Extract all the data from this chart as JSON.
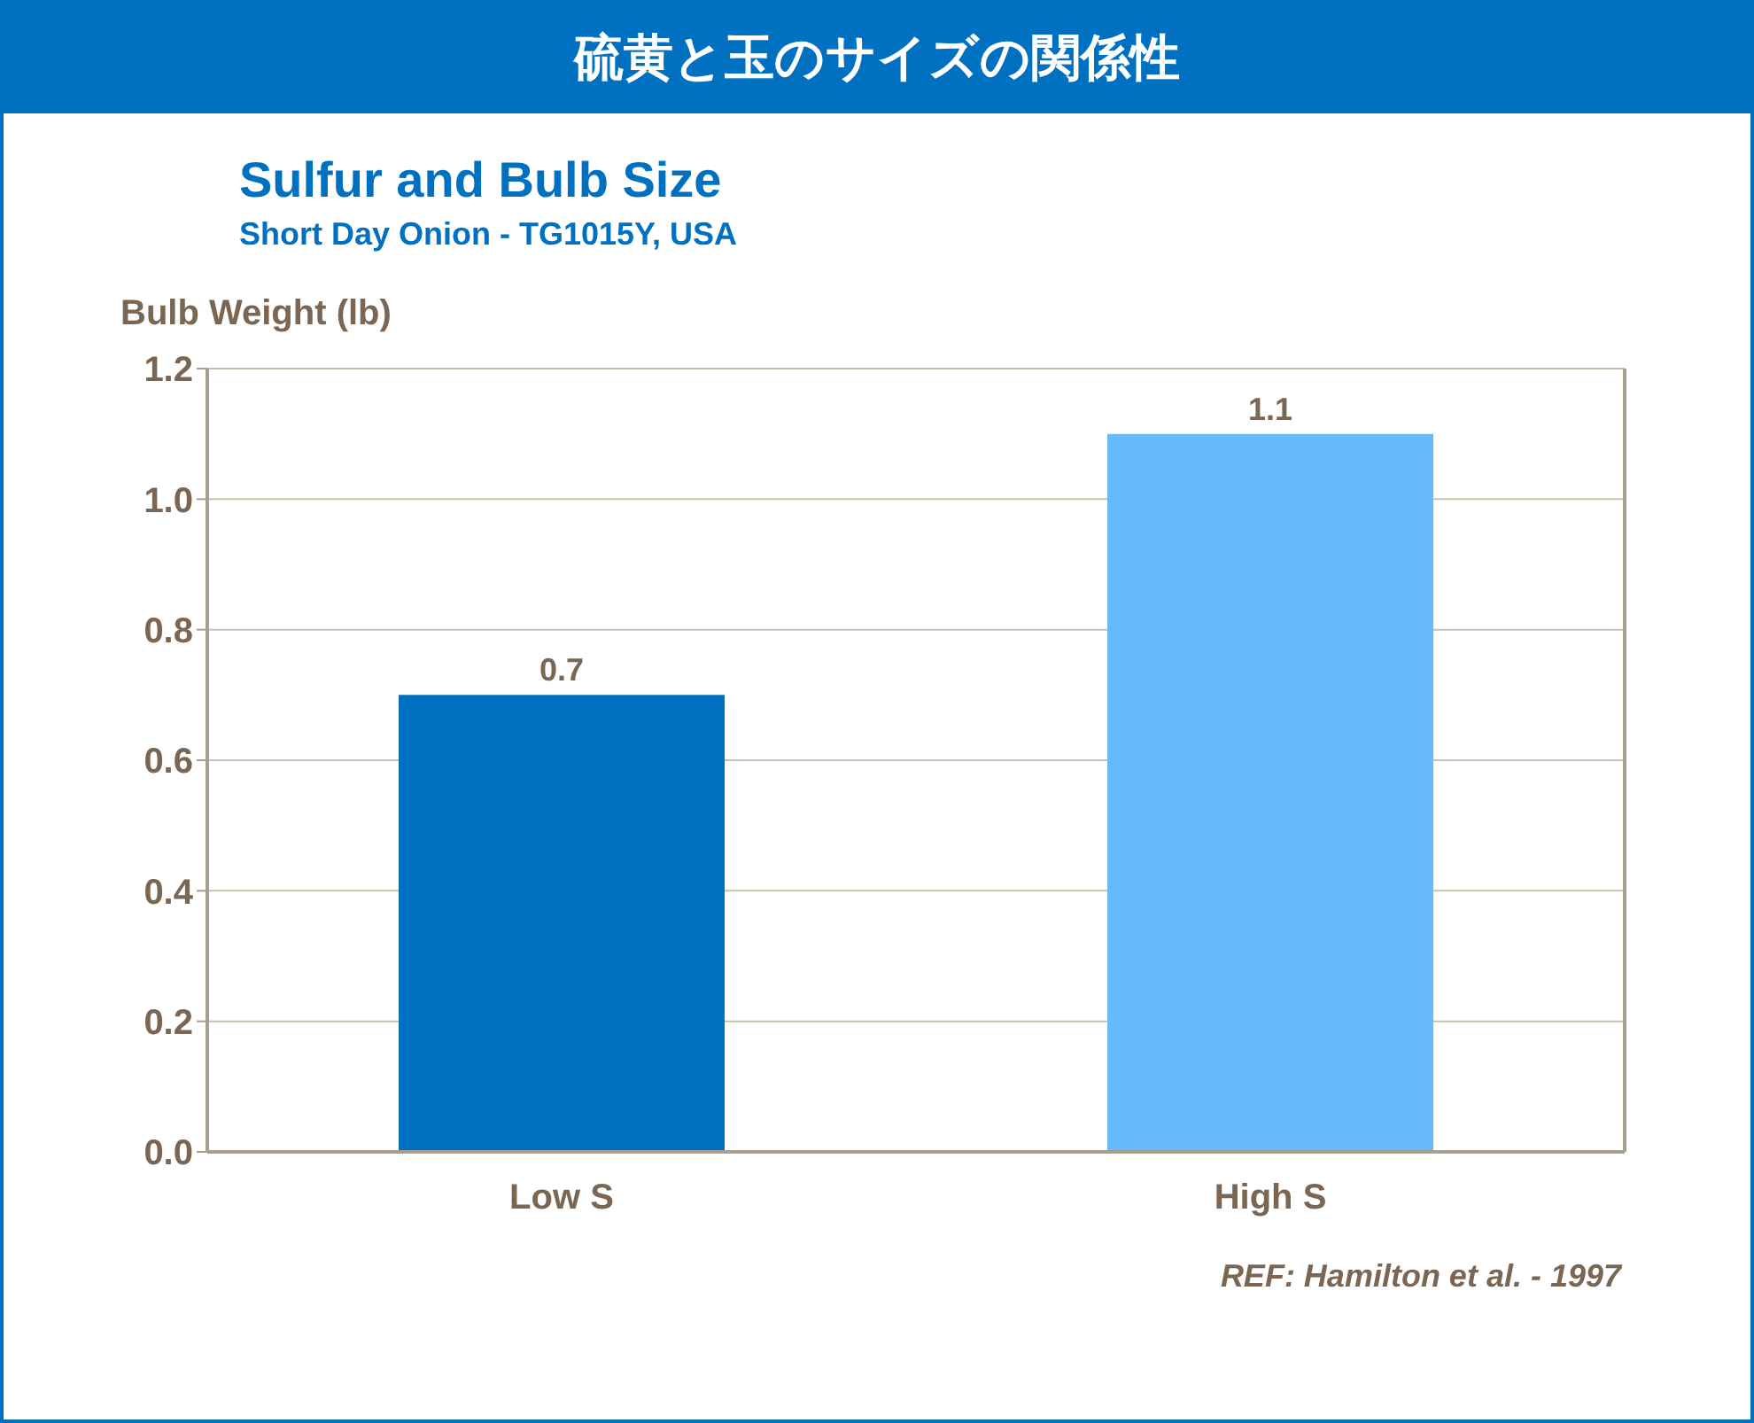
{
  "chart_data": {
    "type": "bar",
    "title": "硫黄と玉のサイズの関係性",
    "subtitle": "Sulfur and Bulb Size",
    "ylabel": "Bulb Weight (lb)",
    "annotations": [
      "Short Day Onion - TG1015Y, USA",
      "REF: Hamilton et al. - 1997"
    ],
    "categories": [
      "Low S",
      "High S"
    ],
    "values": [
      0.7,
      1.1
    ],
    "colors": [
      "#0070c0",
      "#66bbff"
    ],
    "ylim": [
      0,
      1.2
    ],
    "yticks": [
      {
        "value": 0,
        "label": "0.0"
      },
      0.2,
      0.4,
      0.6,
      0.8,
      {
        "value": 1,
        "label": "1.0"
      },
      1.2
    ],
    "grid": "y",
    "data_labels": true
  }
}
